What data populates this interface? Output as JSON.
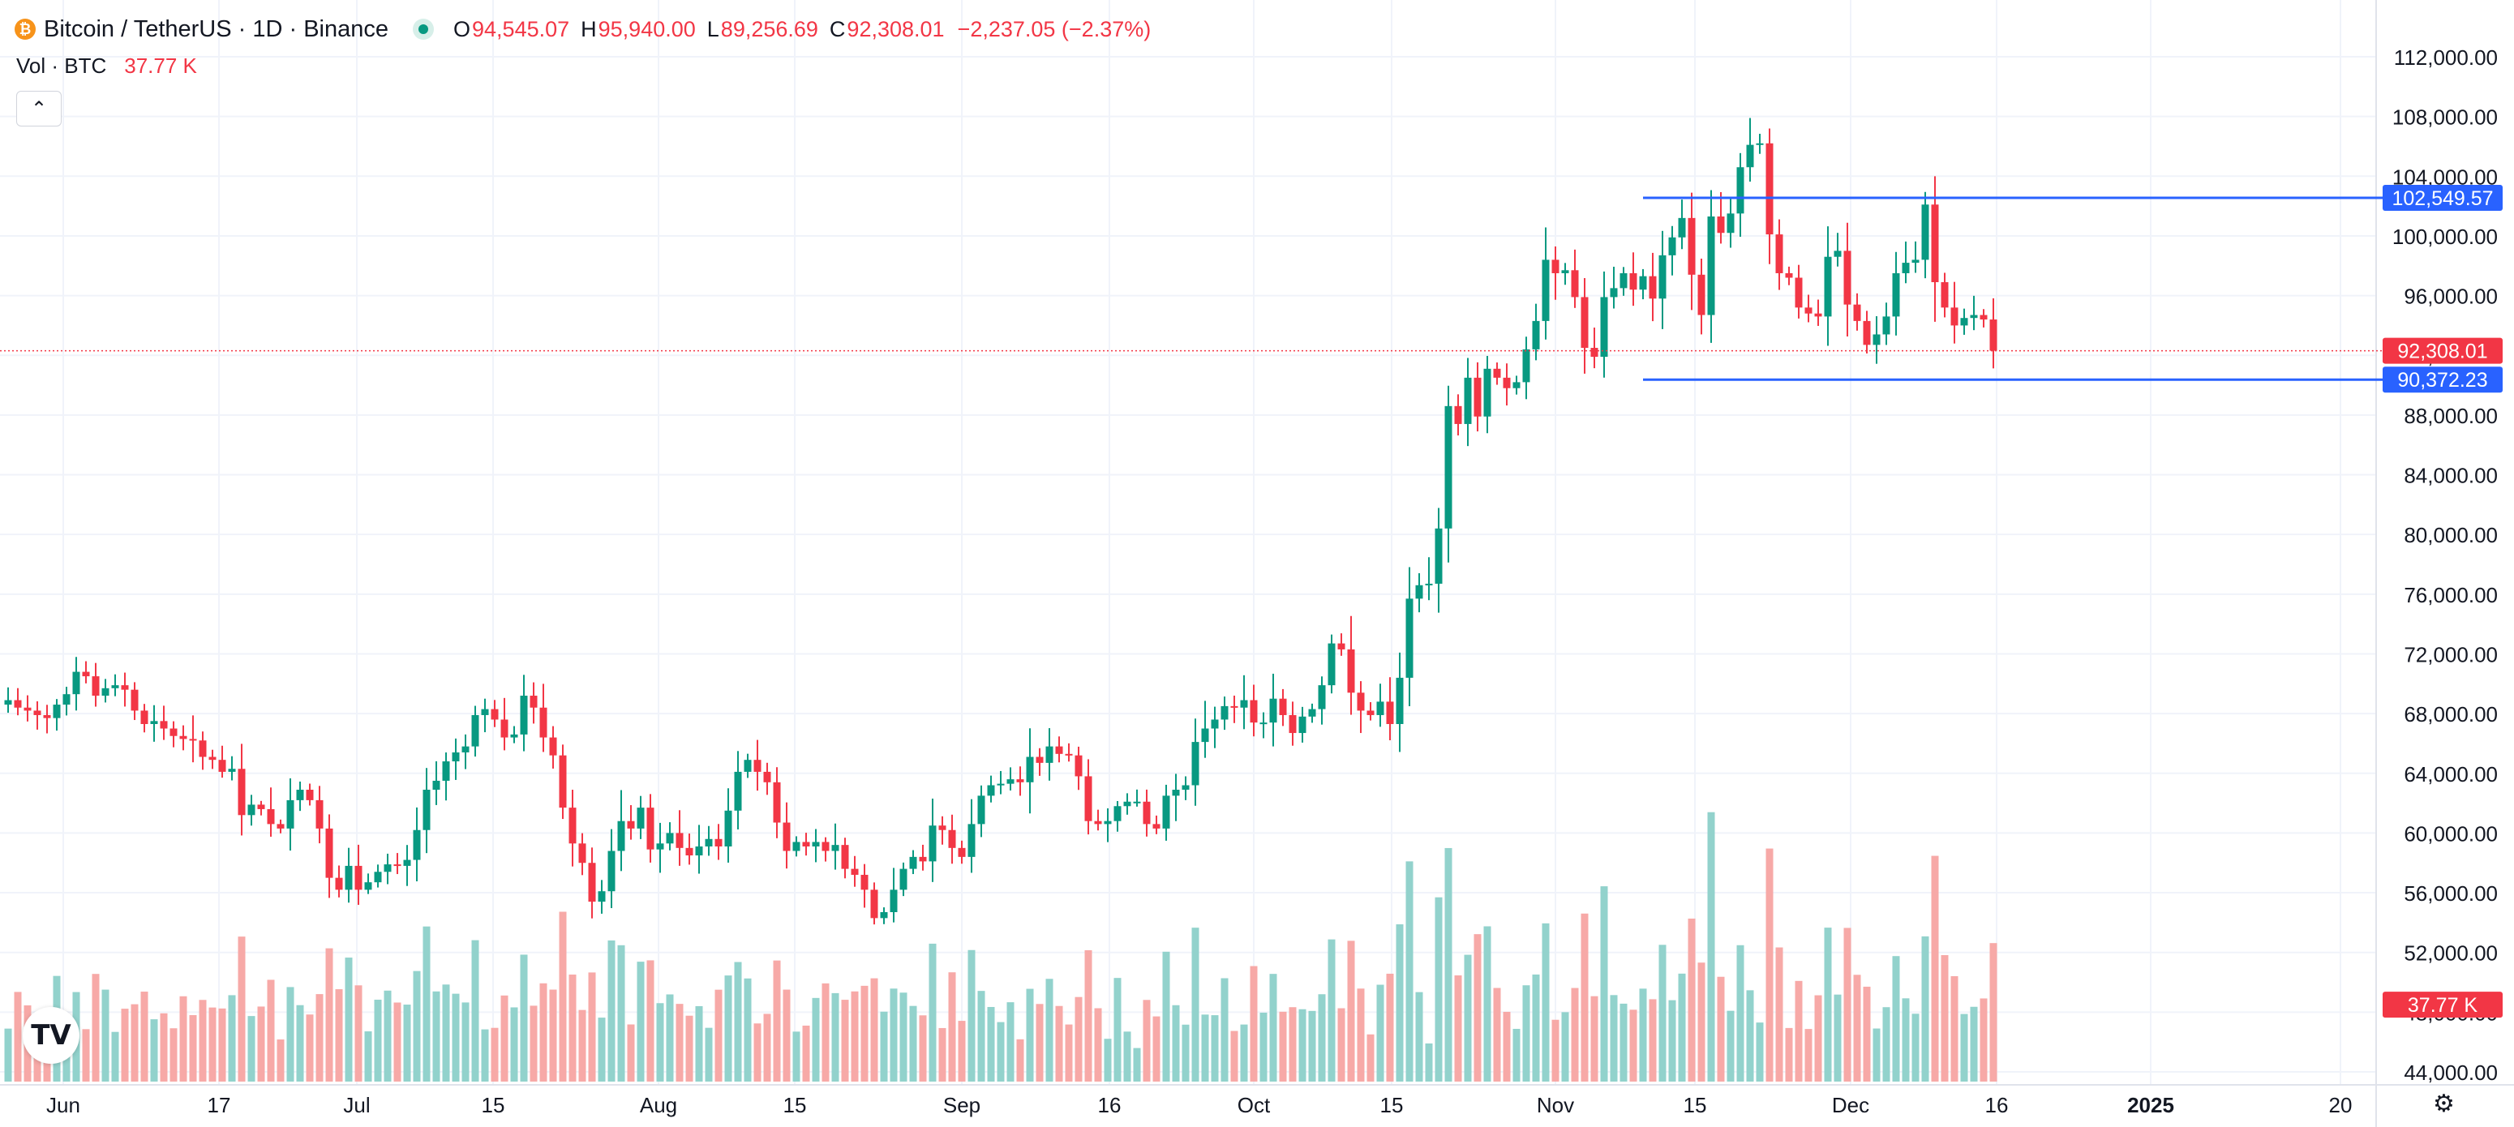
{
  "header": {
    "symbol": "Bitcoin / TetherUS · 1D · Binance",
    "coin_glyph": "₿",
    "open_label": "O",
    "open": "94,545.07",
    "high_label": "H",
    "high": "95,940.00",
    "low_label": "L",
    "low": "89,256.69",
    "close_label": "C",
    "close": "92,308.01",
    "change": "−2,237.05 (−2.37%)"
  },
  "volume_legend": {
    "label": "Vol · BTC",
    "value": "37.77 K"
  },
  "collapse_glyph": "⌃",
  "tv_logo": "TV",
  "settings_icon": "gear-icon",
  "colors": {
    "up": "#089981",
    "down": "#f23645",
    "up_vol": "#92d2cc",
    "down_vol": "#f7a9a7",
    "level_line": "#2962ff",
    "grid": "#f0f3fa"
  },
  "chart_data": {
    "type": "candlestick",
    "title": "Bitcoin / TetherUS · 1D · Binance",
    "y_axis": {
      "min": 42000,
      "max": 114000,
      "ticks": [
        "112,000.00",
        "108,000.00",
        "104,000.00",
        "100,000.00",
        "96,000.00",
        "92,000.00",
        "88,000.00",
        "84,000.00",
        "80,000.00",
        "76,000.00",
        "72,000.00",
        "68,000.00",
        "64,000.00",
        "60,000.00",
        "56,000.00",
        "52,000.00",
        "48,000.00",
        "44,000.00"
      ]
    },
    "x_axis": {
      "ticks": [
        "Jun",
        "17",
        "Jul",
        "15",
        "Aug",
        "15",
        "Sep",
        "16",
        "Oct",
        "15",
        "Nov",
        "15",
        "Dec",
        "16",
        "2025",
        "20"
      ]
    },
    "price_labels": {
      "upper_level": "102,549.57",
      "last_price": "92,308.01",
      "lower_level": "90,372.23",
      "volume_last": "37.77 K"
    },
    "levels": [
      102549.57,
      90372.23
    ],
    "last_price": 92308.01,
    "closes": [
      68900,
      68400,
      68200,
      67900,
      67700,
      68600,
      69300,
      70800,
      70500,
      69200,
      69700,
      69900,
      69600,
      68200,
      67300,
      67500,
      67000,
      66500,
      66300,
      66200,
      65100,
      64900,
      64100,
      64300,
      61200,
      61900,
      61600,
      60600,
      60300,
      62200,
      62900,
      62200,
      60300,
      57000,
      56200,
      57800,
      56200,
      56700,
      57400,
      57900,
      57800,
      58200,
      60200,
      62900,
      63500,
      64800,
      65400,
      65800,
      67900,
      68300,
      67600,
      66400,
      66600,
      69200,
      68400,
      66400,
      65200,
      61700,
      59300,
      58000,
      55400,
      56100,
      58800,
      60800,
      60300,
      61700,
      58900,
      59300,
      60000,
      59000,
      58500,
      59100,
      59600,
      59100,
      61500,
      64100,
      64900,
      64100,
      63400,
      60700,
      58800,
      59400,
      59100,
      59400,
      58800,
      59200,
      57600,
      57200,
      56200,
      54300,
      54700,
      56200,
      57600,
      58400,
      58100,
      60500,
      60200,
      59000,
      58400,
      60600,
      62500,
      63200,
      63300,
      63600,
      63400,
      65100,
      64700,
      65800,
      65300,
      65200,
      63800,
      60800,
      60600,
      60800,
      61800,
      62100,
      62100,
      60600,
      60300,
      62500,
      62900,
      63200,
      66100,
      67000,
      67600,
      68500,
      68400,
      68900,
      67400,
      67400,
      69000,
      67900,
      66700,
      67800,
      68300,
      69900,
      72700,
      72300,
      69400,
      68200,
      67900,
      68800,
      67300,
      70400,
      75700,
      76600,
      76700,
      80400,
      88600,
      87400,
      90500,
      87900,
      91100,
      90500,
      89800,
      90200,
      92400,
      94300,
      98400,
      97500,
      97700,
      95900,
      92500,
      91900,
      95900,
      96500,
      97500,
      96400,
      97300,
      95800,
      98700,
      99900,
      101200,
      97400,
      94700,
      101300,
      100200,
      101500,
      104600,
      106100,
      106200,
      100100,
      97500,
      97200,
      95200,
      94800,
      94600,
      98600,
      99000,
      95400,
      94300,
      92700,
      93400,
      94600,
      97500,
      98200,
      98400,
      102100,
      96900,
      95200,
      94000,
      94500,
      94700,
      94400,
      92308
    ]
  }
}
